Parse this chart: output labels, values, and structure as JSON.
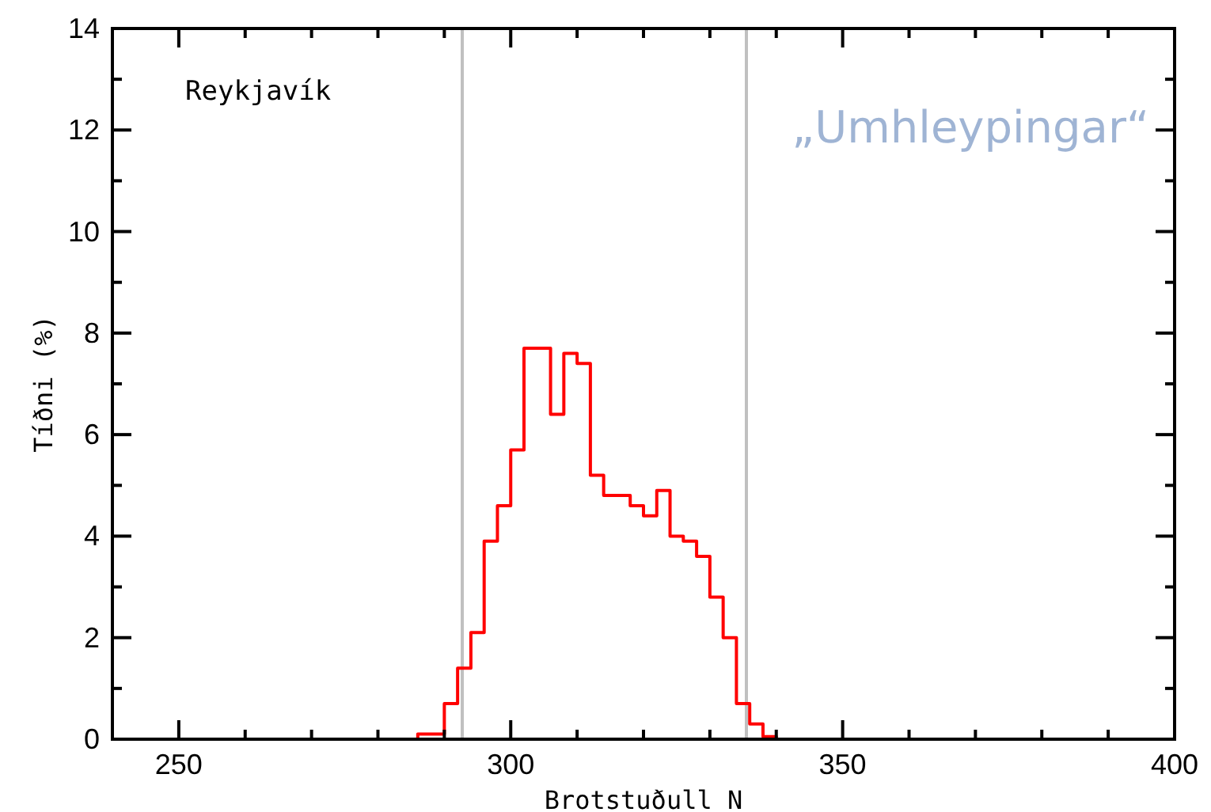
{
  "chart_data": {
    "type": "histogram",
    "xlabel": "Brotstuðull N",
    "ylabel": "Tíðni (%)",
    "annotations": [
      "Reykjavík",
      "„Umhleypingar“"
    ],
    "bins": [
      286,
      288,
      290,
      292,
      294,
      296,
      298,
      300,
      302,
      304,
      306,
      308,
      310,
      312,
      314,
      316,
      318,
      320,
      322,
      324,
      326,
      328,
      330,
      332,
      334,
      336,
      338,
      340
    ],
    "values": [
      0.1,
      0.1,
      0.7,
      1.4,
      2.1,
      3.9,
      4.6,
      5.7,
      7.7,
      7.7,
      6.4,
      7.6,
      7.4,
      5.2,
      4.8,
      4.8,
      4.6,
      4.4,
      4.9,
      4.0,
      3.9,
      3.6,
      2.8,
      2.0,
      0.7,
      0.3,
      0.05
    ],
    "color": "#ff0000",
    "xlim": [
      240,
      400
    ],
    "xticks": [
      {
        "value": 250,
        "label": "250"
      },
      {
        "value": 260,
        "label": null
      },
      {
        "value": 270,
        "label": null
      },
      {
        "value": 280,
        "label": null
      },
      {
        "value": 290,
        "label": null
      },
      {
        "value": 300,
        "label": "300"
      },
      {
        "value": 310,
        "label": null
      },
      {
        "value": 320,
        "label": null
      },
      {
        "value": 330,
        "label": null
      },
      {
        "value": 340,
        "label": null
      },
      {
        "value": 350,
        "label": "350"
      },
      {
        "value": 360,
        "label": null
      },
      {
        "value": 370,
        "label": null
      },
      {
        "value": 380,
        "label": null
      },
      {
        "value": 390,
        "label": null
      },
      {
        "value": 400,
        "label": "400"
      }
    ],
    "ylim": [
      0,
      14
    ],
    "yticks": [
      0,
      {
        "value": 1,
        "label": null
      },
      2,
      {
        "value": 3,
        "label": null
      },
      4,
      {
        "value": 5,
        "label": null
      },
      6,
      {
        "value": 7,
        "label": null
      },
      8,
      {
        "value": 9,
        "label": null
      },
      10,
      {
        "value": 11,
        "label": null
      },
      12,
      {
        "value": 13,
        "label": null
      },
      14
    ],
    "ref_lines": [
      {
        "axis": "x",
        "value": 292.7,
        "color": "#c0c0c0"
      },
      {
        "axis": "x",
        "value": 335.5,
        "color": "#c0c0c0"
      }
    ],
    "line_style": "solid"
  }
}
